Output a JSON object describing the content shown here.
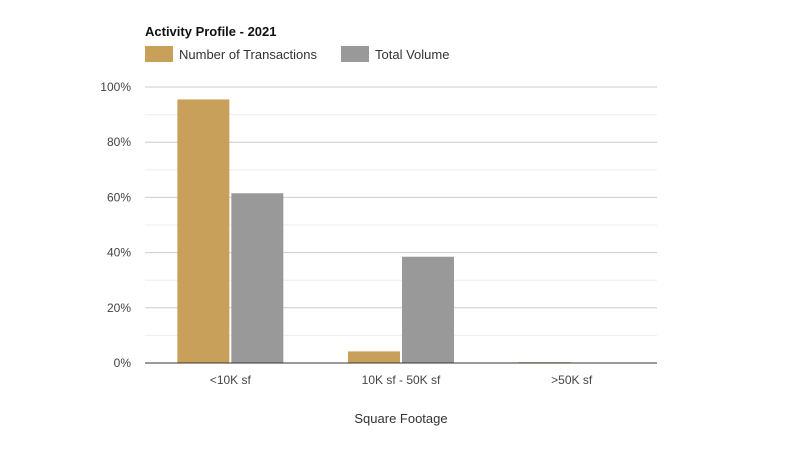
{
  "chart_data": {
    "type": "bar",
    "title": "Activity Profile - 2021",
    "xlabel": "Square Footage",
    "ylabel": "",
    "categories": [
      "<10K sf",
      "10K sf - 50K sf",
      ">50K sf"
    ],
    "series": [
      {
        "name": "Number of Transactions",
        "values": [
          95.5,
          4.2,
          0.3
        ],
        "color": "#c9a05a"
      },
      {
        "name": "Total Volume",
        "values": [
          61.5,
          38.5,
          0.1
        ],
        "color": "#999999"
      }
    ],
    "ylim": [
      0,
      100
    ],
    "yticks": [
      0,
      20,
      40,
      60,
      80,
      100
    ],
    "ytick_labels": [
      "0%",
      "20%",
      "40%",
      "60%",
      "80%",
      "100%"
    ],
    "grid": true,
    "legend_position": "top-left"
  }
}
